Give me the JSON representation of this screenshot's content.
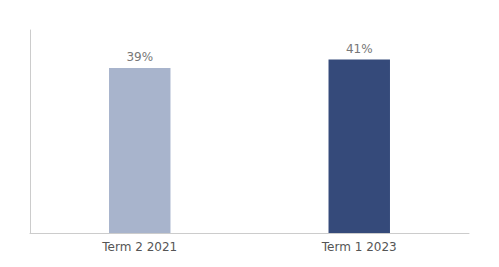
{
  "chart_data": {
    "type": "bar",
    "categories": [
      "Term 2 2021",
      "Term 1 2023"
    ],
    "values": [
      39,
      41
    ],
    "value_labels": [
      "39%",
      "41%"
    ],
    "colors": [
      "#a8b4cc",
      "#354a7a"
    ],
    "ylim": [
      0,
      48
    ],
    "data_labels": true,
    "tick_labels": "x",
    "grid": false
  }
}
